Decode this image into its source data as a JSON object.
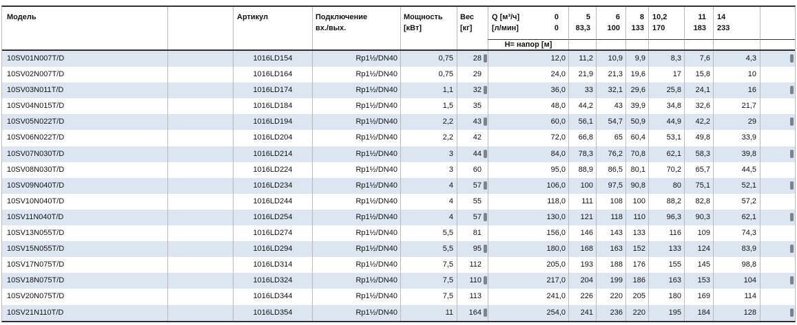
{
  "colors": {
    "row_shade": "#dce6f1",
    "border_dark": "#2f2f2f",
    "grid_line": "#b9b9b9"
  },
  "table": {
    "header": {
      "model": "Модель",
      "article": "Артикул",
      "connection_l1": "Подключение",
      "connection_l2": "вх./вых.",
      "power_l1": "Мощность",
      "power_l2": "[кВт]",
      "weight_l1": "Вес",
      "weight_l2": "[кг]",
      "q_l1": "Q [м³/ч]",
      "q_l1_zero": "0",
      "q_l2": "[л/мин]",
      "q_l2_zero": "0",
      "flow_m3h": [
        "5",
        "6",
        "8",
        "10,2",
        "11",
        "14"
      ],
      "flow_lmin": [
        "83,3",
        "100",
        "133",
        "170",
        "183",
        "233"
      ],
      "head_row_label": "Н= напор [м]"
    },
    "rows": [
      {
        "model": "10SV01N007T/D",
        "article": "1016LD154",
        "connection": "Rp1½/DN40",
        "power_kw": "0,75",
        "weight_kg": "28",
        "head_m": [
          "12,0",
          "11,2",
          "10,9",
          "9,9",
          "8,3",
          "7,6",
          "4,3"
        ]
      },
      {
        "model": "10SV02N007T/D",
        "article": "1016LD164",
        "connection": "Rp1½/DN40",
        "power_kw": "0,75",
        "weight_kg": "29",
        "head_m": [
          "24,0",
          "21,9",
          "21,3",
          "19,6",
          "17",
          "15,8",
          "10"
        ]
      },
      {
        "model": "10SV03N011T/D",
        "article": "1016LD174",
        "connection": "Rp1½/DN40",
        "power_kw": "1,1",
        "weight_kg": "32",
        "head_m": [
          "36,0",
          "33",
          "32,1",
          "29,6",
          "25,8",
          "24,1",
          "16"
        ]
      },
      {
        "model": "10SV04N015T/D",
        "article": "1016LD184",
        "connection": "Rp1½/DN40",
        "power_kw": "1,5",
        "weight_kg": "35",
        "head_m": [
          "48,0",
          "44,2",
          "43",
          "39,9",
          "34,8",
          "32,6",
          "21,7"
        ]
      },
      {
        "model": "10SV05N022T/D",
        "article": "1016LD194",
        "connection": "Rp1½/DN40",
        "power_kw": "2,2",
        "weight_kg": "43",
        "head_m": [
          "60,0",
          "56,1",
          "54,7",
          "50,9",
          "44,9",
          "42,2",
          "29"
        ]
      },
      {
        "model": "10SV06N022T/D",
        "article": "1016LD204",
        "connection": "Rp1½/DN40",
        "power_kw": "2,2",
        "weight_kg": "42",
        "head_m": [
          "72,0",
          "66,8",
          "65",
          "60,4",
          "53,1",
          "49,8",
          "33,9"
        ]
      },
      {
        "model": "10SV07N030T/D",
        "article": "1016LD214",
        "connection": "Rp1½/DN40",
        "power_kw": "3",
        "weight_kg": "44",
        "head_m": [
          "84,0",
          "78,3",
          "76,2",
          "70,8",
          "62,1",
          "58,3",
          "39,8"
        ]
      },
      {
        "model": "10SV08N030T/D",
        "article": "1016LD224",
        "connection": "Rp1½/DN40",
        "power_kw": "3",
        "weight_kg": "60",
        "head_m": [
          "95,0",
          "88,9",
          "86,5",
          "80,1",
          "70,2",
          "65,7",
          "44,5"
        ]
      },
      {
        "model": "10SV09N040T/D",
        "article": "1016LD234",
        "connection": "Rp1½/DN40",
        "power_kw": "4",
        "weight_kg": "57",
        "head_m": [
          "106,0",
          "100",
          "97,5",
          "90,8",
          "80",
          "75,1",
          "52,1"
        ]
      },
      {
        "model": "10SV10N040T/D",
        "article": "1016LD244",
        "connection": "Rp1½/DN40",
        "power_kw": "4",
        "weight_kg": "55",
        "head_m": [
          "118,0",
          "111",
          "108",
          "100",
          "88,2",
          "82,8",
          "57,2"
        ]
      },
      {
        "model": "10SV11N040T/D",
        "article": "1016LD254",
        "connection": "Rp1½/DN40",
        "power_kw": "4",
        "weight_kg": "57",
        "head_m": [
          "130,0",
          "121",
          "118",
          "110",
          "96,3",
          "90,3",
          "62,1"
        ]
      },
      {
        "model": "10SV13N055T/D",
        "article": "1016LD274",
        "connection": "Rp1½/DN40",
        "power_kw": "5,5",
        "weight_kg": "81",
        "head_m": [
          "156,0",
          "146",
          "143",
          "133",
          "116",
          "109",
          "74,3"
        ]
      },
      {
        "model": "10SV15N055T/D",
        "article": "1016LD294",
        "connection": "Rp1½/DN40",
        "power_kw": "5,5",
        "weight_kg": "95",
        "head_m": [
          "180,0",
          "168",
          "163",
          "152",
          "133",
          "124",
          "83,9"
        ]
      },
      {
        "model": "10SV17N075T/D",
        "article": "1016LD314",
        "connection": "Rp1½/DN40",
        "power_kw": "7,5",
        "weight_kg": "112",
        "head_m": [
          "205,0",
          "193",
          "188",
          "176",
          "155",
          "145",
          "98,8"
        ]
      },
      {
        "model": "10SV18N075T/D",
        "article": "1016LD324",
        "connection": "Rp1½/DN40",
        "power_kw": "7,5",
        "weight_kg": "110",
        "head_m": [
          "217,0",
          "204",
          "199",
          "186",
          "163",
          "153",
          "104"
        ]
      },
      {
        "model": "10SV20N075T/D",
        "article": "1016LD344",
        "connection": "Rp1½/DN40",
        "power_kw": "7,5",
        "weight_kg": "113",
        "head_m": [
          "241,0",
          "226",
          "220",
          "205",
          "180",
          "169",
          "114"
        ]
      },
      {
        "model": "10SV21N110T/D",
        "article": "1016LD354",
        "connection": "Rp1½/DN40",
        "power_kw": "11",
        "weight_kg": "164",
        "head_m": [
          "254,0",
          "241",
          "236",
          "220",
          "195",
          "184",
          "128"
        ]
      }
    ]
  }
}
